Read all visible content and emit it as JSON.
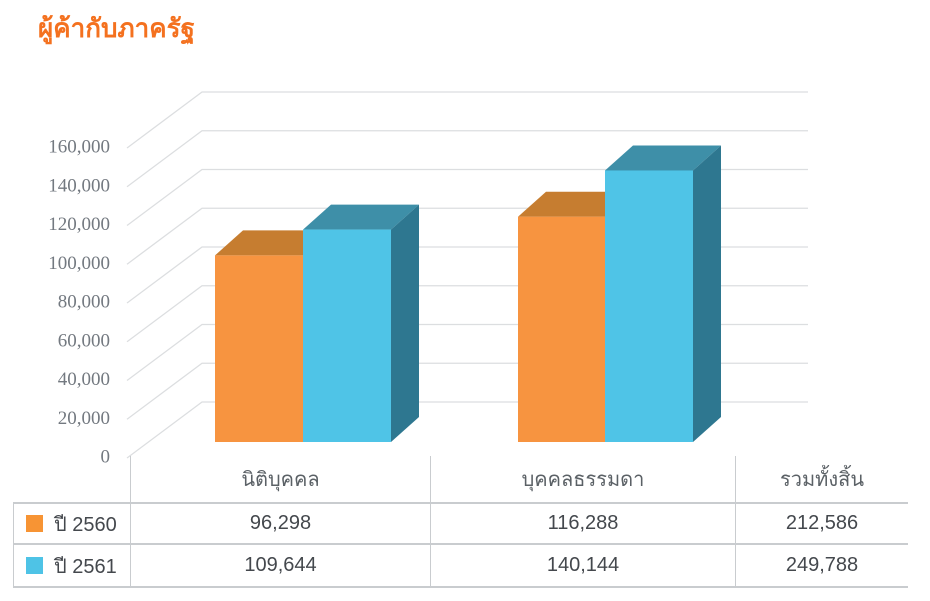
{
  "title": "ผู้ค้ากับภาครัฐ",
  "colors": {
    "title": "#F4711F",
    "grid": "#DCDEE0",
    "axis_text": "#737980",
    "table_border": "#C9CCCF",
    "header_text": "#5B6166",
    "value_text": "#44484D",
    "series": [
      {
        "front": "#F79440",
        "top": "#C67D30",
        "side": "#B06C28"
      },
      {
        "front": "#4FC4E7",
        "top": "#3E8FA8",
        "side": "#2E7790"
      }
    ]
  },
  "chart_data": {
    "type": "bar",
    "projection": "3d",
    "title": "ผู้ค้ากับภาครัฐ",
    "categories": [
      "นิติบุคคล",
      "บุคคลธรรมดา"
    ],
    "series": [
      {
        "name": "ปี 2560",
        "color": "#F79440",
        "values": [
          96298,
          116288
        ],
        "total": 212586
      },
      {
        "name": "ปี 2561",
        "color": "#4FC4E7",
        "values": [
          109644,
          140144
        ],
        "total": 249788
      }
    ],
    "ylim": [
      0,
      160000
    ],
    "ytick_step": 20000,
    "ytick_labels": [
      "0",
      "20,000",
      "40,000",
      "60,000",
      "80,000",
      "100,000",
      "120,000",
      "140,000",
      "160,000"
    ],
    "grid": true,
    "legend_position": "table-left-column"
  },
  "table": {
    "columns": [
      "นิติบุคคล",
      "บุคคลธรรมดา",
      "รวมทั้งสิ้น"
    ],
    "rows": [
      {
        "label": "ปี 2560",
        "swatch": "#F79434",
        "values": [
          "96,298",
          "116,288",
          "212,586"
        ]
      },
      {
        "label": "ปี 2561",
        "swatch": "#4EC3E6",
        "values": [
          "109,644",
          "140,144",
          "249,788"
        ]
      }
    ]
  }
}
